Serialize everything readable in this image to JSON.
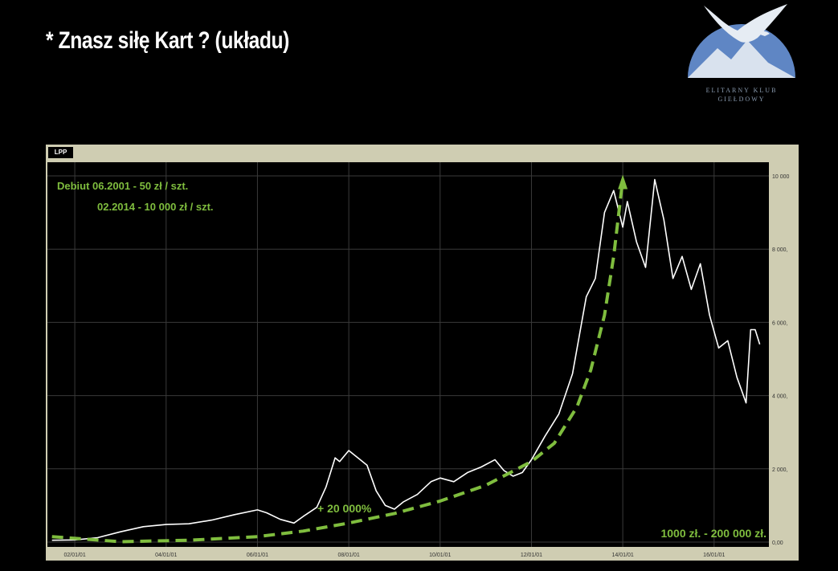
{
  "slide": {
    "title": "* Znasz siłę Kart ?  (układu)"
  },
  "logo": {
    "line1": "ELITARNY KLUB",
    "line2": "GIEŁDOWY",
    "colors": {
      "circle": "#5f86c4",
      "mountain": "#d9e2ee",
      "eagle": "#e6ecf3"
    }
  },
  "chart_data": {
    "type": "line",
    "legend": [
      "LPP"
    ],
    "x_tick_labels": [
      "02/01/01",
      "04/01/01",
      "06/01/01",
      "08/01/01",
      "10/01/01",
      "12/01/01",
      "14/01/01",
      "16/01/01"
    ],
    "y_tick_labels": [
      "0,00",
      "2 000,",
      "4 000,",
      "6 000,",
      "8 000,",
      "10 000"
    ],
    "ylim": [
      0,
      10000
    ],
    "xlim": [
      2001.4,
      2017.2
    ],
    "grid": true,
    "series": [
      {
        "name": "LPP",
        "color": "#ffffff",
        "x": [
          2001.5,
          2002.0,
          2002.5,
          2003.0,
          2003.5,
          2004.0,
          2004.5,
          2005.0,
          2005.5,
          2006.0,
          2006.2,
          2006.5,
          2006.8,
          2007.0,
          2007.3,
          2007.5,
          2007.7,
          2007.8,
          2008.0,
          2008.2,
          2008.4,
          2008.6,
          2008.8,
          2009.0,
          2009.2,
          2009.5,
          2009.8,
          2010.0,
          2010.3,
          2010.6,
          2010.9,
          2011.2,
          2011.4,
          2011.6,
          2011.8,
          2012.0,
          2012.3,
          2012.6,
          2012.9,
          2013.2,
          2013.4,
          2013.6,
          2013.8,
          2014.0,
          2014.1,
          2014.3,
          2014.5,
          2014.7,
          2014.9,
          2015.1,
          2015.3,
          2015.5,
          2015.7,
          2015.9,
          2016.1,
          2016.3,
          2016.5,
          2016.7,
          2016.8,
          2016.9,
          2017.0
        ],
        "values": [
          50,
          60,
          120,
          280,
          420,
          480,
          500,
          600,
          750,
          880,
          800,
          620,
          520,
          700,
          950,
          1500,
          2300,
          2200,
          2500,
          2300,
          2100,
          1400,
          1000,
          900,
          1100,
          1300,
          1650,
          1750,
          1650,
          1900,
          2050,
          2250,
          1950,
          1800,
          1900,
          2250,
          2900,
          3500,
          4600,
          6700,
          7200,
          9000,
          9600,
          8600,
          9300,
          8200,
          7500,
          9900,
          8800,
          7200,
          7800,
          6900,
          7600,
          6200,
          5300,
          5500,
          4500,
          3800,
          5800,
          5800,
          5400
        ]
      },
      {
        "name": "",
        "color": "#7fbd3e",
        "style": "dashed",
        "x": [
          2001.5,
          2003.0,
          2004.5,
          2006.0,
          2007.0,
          2008.0,
          2009.0,
          2010.0,
          2011.0,
          2012.0,
          2012.5,
          2013.0,
          2013.3,
          2013.6,
          2013.8,
          2014.0
        ],
        "values": [
          150,
          10,
          50,
          150,
          300,
          520,
          780,
          1120,
          1550,
          2200,
          2700,
          3700,
          4700,
          6200,
          7800,
          9900
        ]
      }
    ],
    "annotations": [
      {
        "text": "Debiut 06.2001 - 50 zł / szt."
      },
      {
        "text": "02.2014 - 10 000 zł / szt."
      },
      {
        "text": "+ 20 000%"
      },
      {
        "text": "1000 zł. - 200 000 zł."
      }
    ]
  }
}
